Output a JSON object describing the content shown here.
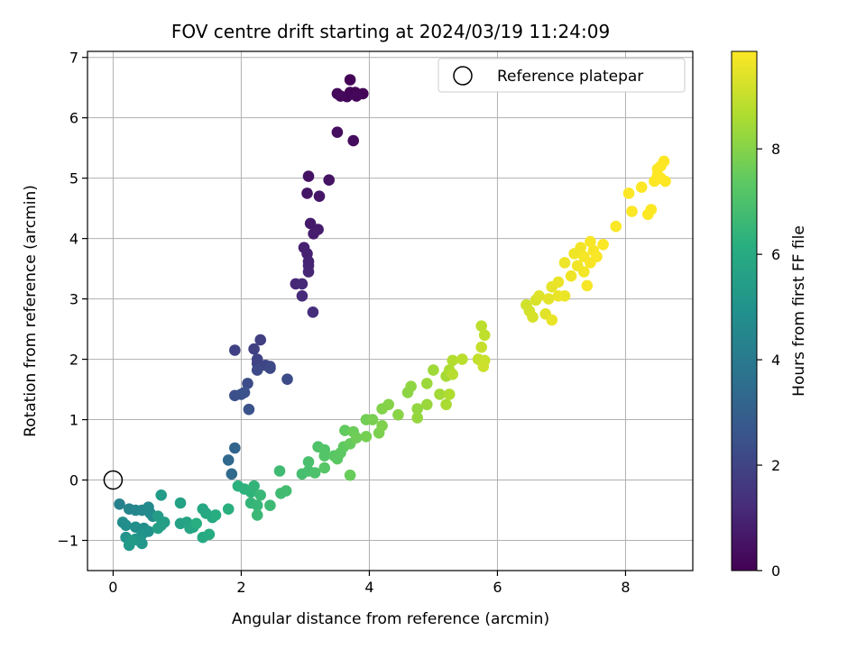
{
  "chart_data": {
    "type": "scatter",
    "title": "FOV centre drift starting at 2024/03/19 11:24:09",
    "xlabel": "Angular distance from reference (arcmin)",
    "ylabel": "Rotation from reference (arcmin)",
    "xlim": [
      -0.4,
      9.05
    ],
    "ylim": [
      -1.5,
      7.1
    ],
    "xticks": [
      0,
      2,
      4,
      6,
      8
    ],
    "yticks": [
      -1,
      0,
      1,
      2,
      3,
      4,
      5,
      6,
      7
    ],
    "grid": true,
    "legend": {
      "position": "top-right",
      "entries": [
        {
          "label": "Reference platepar",
          "marker": "open-circle"
        }
      ]
    },
    "reference_point": {
      "x": 0,
      "y": 0
    },
    "colorbar": {
      "label": "Hours from first FF file",
      "colormap": "viridis",
      "range": [
        0,
        9.85
      ],
      "ticks": [
        0,
        2,
        4,
        6,
        8
      ]
    },
    "series": [
      {
        "color_by": "hours",
        "points": [
          {
            "x": 3.7,
            "y": 6.63,
            "c": 0.05
          },
          {
            "x": 3.78,
            "y": 6.42,
            "c": 0.08
          },
          {
            "x": 3.7,
            "y": 6.42,
            "c": 0.1
          },
          {
            "x": 3.9,
            "y": 6.4,
            "c": 0.12
          },
          {
            "x": 3.65,
            "y": 6.35,
            "c": 0.15
          },
          {
            "x": 3.8,
            "y": 6.36,
            "c": 0.18
          },
          {
            "x": 3.55,
            "y": 6.36,
            "c": 0.2
          },
          {
            "x": 3.5,
            "y": 6.4,
            "c": 0.25
          },
          {
            "x": 3.75,
            "y": 5.62,
            "c": 0.3
          },
          {
            "x": 3.5,
            "y": 5.76,
            "c": 0.35
          },
          {
            "x": 3.05,
            "y": 5.03,
            "c": 0.45
          },
          {
            "x": 3.37,
            "y": 4.97,
            "c": 0.5
          },
          {
            "x": 3.03,
            "y": 4.75,
            "c": 0.55
          },
          {
            "x": 3.22,
            "y": 4.7,
            "c": 0.6
          },
          {
            "x": 3.08,
            "y": 4.25,
            "c": 0.7
          },
          {
            "x": 3.2,
            "y": 4.15,
            "c": 0.75
          },
          {
            "x": 3.13,
            "y": 4.08,
            "c": 0.8
          },
          {
            "x": 2.98,
            "y": 3.85,
            "c": 0.85
          },
          {
            "x": 3.03,
            "y": 3.75,
            "c": 0.9
          },
          {
            "x": 3.05,
            "y": 3.62,
            "c": 0.95
          },
          {
            "x": 3.05,
            "y": 3.55,
            "c": 1.0
          },
          {
            "x": 3.05,
            "y": 3.45,
            "c": 1.05
          },
          {
            "x": 2.85,
            "y": 3.25,
            "c": 1.1
          },
          {
            "x": 2.95,
            "y": 3.25,
            "c": 1.15
          },
          {
            "x": 2.95,
            "y": 3.05,
            "c": 1.2
          },
          {
            "x": 3.12,
            "y": 2.78,
            "c": 1.25
          },
          {
            "x": 2.3,
            "y": 2.32,
            "c": 1.8
          },
          {
            "x": 2.2,
            "y": 2.17,
            "c": 1.85
          },
          {
            "x": 1.9,
            "y": 2.15,
            "c": 1.9
          },
          {
            "x": 2.25,
            "y": 2.0,
            "c": 1.95
          },
          {
            "x": 2.25,
            "y": 1.93,
            "c": 2.0
          },
          {
            "x": 2.38,
            "y": 1.9,
            "c": 2.05
          },
          {
            "x": 2.45,
            "y": 1.88,
            "c": 2.1
          },
          {
            "x": 2.45,
            "y": 1.85,
            "c": 2.15
          },
          {
            "x": 2.25,
            "y": 1.82,
            "c": 2.2
          },
          {
            "x": 2.72,
            "y": 1.67,
            "c": 2.25
          },
          {
            "x": 2.1,
            "y": 1.6,
            "c": 2.3
          },
          {
            "x": 1.9,
            "y": 1.4,
            "c": 2.35
          },
          {
            "x": 2.0,
            "y": 1.42,
            "c": 2.4
          },
          {
            "x": 2.05,
            "y": 1.45,
            "c": 2.45
          },
          {
            "x": 2.12,
            "y": 1.17,
            "c": 2.5
          },
          {
            "x": 1.9,
            "y": 0.53,
            "c": 3.2
          },
          {
            "x": 1.8,
            "y": 0.33,
            "c": 3.3
          },
          {
            "x": 1.85,
            "y": 0.1,
            "c": 3.4
          },
          {
            "x": 0.1,
            "y": -0.4,
            "c": 4.3
          },
          {
            "x": 0.25,
            "y": -0.48,
            "c": 4.4
          },
          {
            "x": 0.35,
            "y": -0.5,
            "c": 4.5
          },
          {
            "x": 0.45,
            "y": -0.5,
            "c": 4.55
          },
          {
            "x": 0.55,
            "y": -0.45,
            "c": 4.6
          },
          {
            "x": 0.58,
            "y": -0.55,
            "c": 4.65
          },
          {
            "x": 0.62,
            "y": -0.6,
            "c": 4.7
          },
          {
            "x": 0.15,
            "y": -0.7,
            "c": 4.75
          },
          {
            "x": 0.2,
            "y": -0.75,
            "c": 4.8
          },
          {
            "x": 0.35,
            "y": -0.78,
            "c": 4.85
          },
          {
            "x": 0.48,
            "y": -0.8,
            "c": 4.9
          },
          {
            "x": 0.55,
            "y": -0.85,
            "c": 4.95
          },
          {
            "x": 0.45,
            "y": -0.9,
            "c": 5.0
          },
          {
            "x": 0.2,
            "y": -0.95,
            "c": 5.05
          },
          {
            "x": 0.35,
            "y": -0.98,
            "c": 5.1
          },
          {
            "x": 0.4,
            "y": -1.0,
            "c": 5.15
          },
          {
            "x": 0.45,
            "y": -1.05,
            "c": 5.2
          },
          {
            "x": 0.25,
            "y": -1.08,
            "c": 5.25
          },
          {
            "x": 0.3,
            "y": -1.0,
            "c": 5.3
          },
          {
            "x": 0.75,
            "y": -0.25,
            "c": 5.35
          },
          {
            "x": 0.7,
            "y": -0.6,
            "c": 5.4
          },
          {
            "x": 0.8,
            "y": -0.7,
            "c": 5.45
          },
          {
            "x": 0.75,
            "y": -0.75,
            "c": 5.5
          },
          {
            "x": 0.7,
            "y": -0.8,
            "c": 5.55
          },
          {
            "x": 1.05,
            "y": -0.38,
            "c": 5.6
          },
          {
            "x": 1.05,
            "y": -0.72,
            "c": 5.65
          },
          {
            "x": 1.15,
            "y": -0.7,
            "c": 5.7
          },
          {
            "x": 1.2,
            "y": -0.8,
            "c": 5.75
          },
          {
            "x": 1.25,
            "y": -0.78,
            "c": 5.8
          },
          {
            "x": 1.4,
            "y": -0.48,
            "c": 5.85
          },
          {
            "x": 1.45,
            "y": -0.55,
            "c": 5.9
          },
          {
            "x": 1.55,
            "y": -0.62,
            "c": 5.95
          },
          {
            "x": 1.4,
            "y": -0.95,
            "c": 6.0
          },
          {
            "x": 1.5,
            "y": -0.9,
            "c": 6.05
          },
          {
            "x": 1.6,
            "y": -0.58,
            "c": 6.1
          },
          {
            "x": 1.3,
            "y": -0.72,
            "c": 6.15
          },
          {
            "x": 1.8,
            "y": -0.48,
            "c": 6.2
          },
          {
            "x": 1.95,
            "y": -0.1,
            "c": 6.25
          },
          {
            "x": 2.05,
            "y": -0.15,
            "c": 6.3
          },
          {
            "x": 2.15,
            "y": -0.2,
            "c": 6.35
          },
          {
            "x": 2.2,
            "y": -0.1,
            "c": 6.4
          },
          {
            "x": 2.15,
            "y": -0.38,
            "c": 6.45
          },
          {
            "x": 2.25,
            "y": -0.42,
            "c": 6.5
          },
          {
            "x": 2.3,
            "y": -0.25,
            "c": 6.55
          },
          {
            "x": 2.25,
            "y": -0.58,
            "c": 6.6
          },
          {
            "x": 2.45,
            "y": -0.42,
            "c": 6.65
          },
          {
            "x": 2.6,
            "y": 0.15,
            "c": 6.7
          },
          {
            "x": 2.62,
            "y": -0.22,
            "c": 6.75
          },
          {
            "x": 2.7,
            "y": -0.18,
            "c": 6.8
          },
          {
            "x": 2.95,
            "y": 0.1,
            "c": 6.85
          },
          {
            "x": 3.05,
            "y": 0.15,
            "c": 6.9
          },
          {
            "x": 3.05,
            "y": 0.3,
            "c": 6.95
          },
          {
            "x": 3.15,
            "y": 0.12,
            "c": 7.0
          },
          {
            "x": 3.2,
            "y": 0.55,
            "c": 7.05
          },
          {
            "x": 3.3,
            "y": 0.5,
            "c": 7.1
          },
          {
            "x": 3.3,
            "y": 0.4,
            "c": 7.15
          },
          {
            "x": 3.3,
            "y": 0.2,
            "c": 7.2
          },
          {
            "x": 3.45,
            "y": 0.4,
            "c": 7.25
          },
          {
            "x": 3.5,
            "y": 0.35,
            "c": 7.3
          },
          {
            "x": 3.55,
            "y": 0.45,
            "c": 7.35
          },
          {
            "x": 3.6,
            "y": 0.55,
            "c": 7.4
          },
          {
            "x": 3.62,
            "y": 0.82,
            "c": 7.45
          },
          {
            "x": 3.7,
            "y": 0.6,
            "c": 7.5
          },
          {
            "x": 3.7,
            "y": 0.08,
            "c": 7.55
          },
          {
            "x": 3.75,
            "y": 0.8,
            "c": 7.6
          },
          {
            "x": 3.8,
            "y": 0.7,
            "c": 7.65
          },
          {
            "x": 3.95,
            "y": 1.0,
            "c": 7.7
          },
          {
            "x": 3.95,
            "y": 0.72,
            "c": 7.75
          },
          {
            "x": 4.05,
            "y": 1.0,
            "c": 7.8
          },
          {
            "x": 4.15,
            "y": 0.78,
            "c": 7.85
          },
          {
            "x": 4.2,
            "y": 0.9,
            "c": 7.9
          },
          {
            "x": 4.2,
            "y": 1.18,
            "c": 7.95
          },
          {
            "x": 4.3,
            "y": 1.25,
            "c": 8.0
          },
          {
            "x": 4.45,
            "y": 1.08,
            "c": 8.05
          },
          {
            "x": 4.6,
            "y": 1.45,
            "c": 8.1
          },
          {
            "x": 4.65,
            "y": 1.55,
            "c": 8.15
          },
          {
            "x": 4.75,
            "y": 1.18,
            "c": 8.2
          },
          {
            "x": 4.75,
            "y": 1.03,
            "c": 8.25
          },
          {
            "x": 4.9,
            "y": 1.25,
            "c": 8.3
          },
          {
            "x": 4.9,
            "y": 1.6,
            "c": 8.35
          },
          {
            "x": 5.0,
            "y": 1.82,
            "c": 8.4
          },
          {
            "x": 5.1,
            "y": 1.42,
            "c": 8.45
          },
          {
            "x": 5.2,
            "y": 1.72,
            "c": 8.5
          },
          {
            "x": 5.2,
            "y": 1.25,
            "c": 8.55
          },
          {
            "x": 5.25,
            "y": 1.82,
            "c": 8.6
          },
          {
            "x": 5.25,
            "y": 1.42,
            "c": 8.65
          },
          {
            "x": 5.3,
            "y": 1.98,
            "c": 8.7
          },
          {
            "x": 5.3,
            "y": 1.75,
            "c": 8.75
          },
          {
            "x": 5.45,
            "y": 2.0,
            "c": 8.8
          },
          {
            "x": 5.75,
            "y": 2.55,
            "c": 8.85
          },
          {
            "x": 5.8,
            "y": 2.4,
            "c": 8.9
          },
          {
            "x": 5.7,
            "y": 2.0,
            "c": 8.95
          },
          {
            "x": 5.75,
            "y": 2.2,
            "c": 9.0
          },
          {
            "x": 5.8,
            "y": 1.98,
            "c": 9.05
          },
          {
            "x": 5.78,
            "y": 1.88,
            "c": 9.1
          },
          {
            "x": 6.45,
            "y": 2.9,
            "c": 9.15
          },
          {
            "x": 6.5,
            "y": 2.8,
            "c": 9.2
          },
          {
            "x": 6.55,
            "y": 2.7,
            "c": 9.25
          },
          {
            "x": 6.6,
            "y": 2.98,
            "c": 9.3
          },
          {
            "x": 6.65,
            "y": 3.05,
            "c": 9.35
          },
          {
            "x": 6.75,
            "y": 2.75,
            "c": 9.4
          },
          {
            "x": 6.8,
            "y": 3.0,
            "c": 9.45
          },
          {
            "x": 6.85,
            "y": 3.2,
            "c": 9.5
          },
          {
            "x": 6.85,
            "y": 2.65,
            "c": 9.52
          },
          {
            "x": 6.95,
            "y": 3.05,
            "c": 9.54
          },
          {
            "x": 6.95,
            "y": 3.28,
            "c": 9.56
          },
          {
            "x": 7.05,
            "y": 3.05,
            "c": 9.58
          },
          {
            "x": 7.05,
            "y": 3.6,
            "c": 9.6
          },
          {
            "x": 7.15,
            "y": 3.38,
            "c": 9.62
          },
          {
            "x": 7.2,
            "y": 3.75,
            "c": 9.64
          },
          {
            "x": 7.25,
            "y": 3.55,
            "c": 9.66
          },
          {
            "x": 7.3,
            "y": 3.85,
            "c": 9.68
          },
          {
            "x": 7.35,
            "y": 3.45,
            "c": 9.7
          },
          {
            "x": 7.35,
            "y": 3.7,
            "c": 9.72
          },
          {
            "x": 7.4,
            "y": 3.22,
            "c": 9.74
          },
          {
            "x": 7.45,
            "y": 3.95,
            "c": 9.76
          },
          {
            "x": 7.45,
            "y": 3.6,
            "c": 9.78
          },
          {
            "x": 7.5,
            "y": 3.8,
            "c": 9.78
          },
          {
            "x": 7.55,
            "y": 3.7,
            "c": 9.79
          },
          {
            "x": 7.65,
            "y": 3.9,
            "c": 9.8
          },
          {
            "x": 7.85,
            "y": 4.2,
            "c": 9.81
          },
          {
            "x": 8.05,
            "y": 4.75,
            "c": 9.82
          },
          {
            "x": 8.1,
            "y": 4.45,
            "c": 9.82
          },
          {
            "x": 8.25,
            "y": 4.85,
            "c": 9.83
          },
          {
            "x": 8.35,
            "y": 4.4,
            "c": 9.83
          },
          {
            "x": 8.4,
            "y": 4.48,
            "c": 9.84
          },
          {
            "x": 8.45,
            "y": 4.95,
            "c": 9.84
          },
          {
            "x": 8.5,
            "y": 5.15,
            "c": 9.84
          },
          {
            "x": 8.5,
            "y": 5.05,
            "c": 9.85
          },
          {
            "x": 8.55,
            "y": 5.0,
            "c": 9.85
          },
          {
            "x": 8.55,
            "y": 5.2,
            "c": 9.85
          },
          {
            "x": 8.6,
            "y": 5.28,
            "c": 9.85
          },
          {
            "x": 8.62,
            "y": 4.95,
            "c": 9.85
          }
        ]
      }
    ]
  }
}
